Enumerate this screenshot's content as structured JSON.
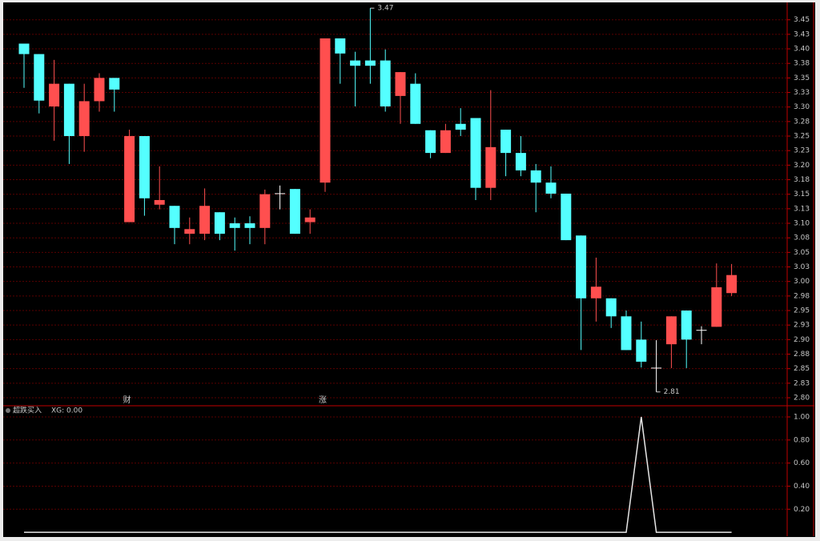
{
  "chart_data": [
    {
      "type": "candlestick",
      "open": [
        3.409,
        3.391,
        3.301,
        3.34,
        3.25,
        3.31,
        3.35,
        3.102,
        3.25,
        3.132,
        3.13,
        3.082,
        3.082,
        3.119,
        3.1,
        3.1,
        3.092,
        3.151,
        3.159,
        3.102,
        3.17,
        3.418,
        3.38,
        3.38,
        3.38,
        3.319,
        3.34,
        3.26,
        3.221,
        3.271,
        3.281,
        3.161,
        3.261,
        3.221,
        3.191,
        3.17,
        3.151,
        3.079,
        2.971,
        2.971,
        2.94,
        2.9,
        2.851,
        2.892,
        2.95,
        2.916,
        2.922,
        2.98
      ],
      "high": [
        3.409,
        3.391,
        3.381,
        3.34,
        3.34,
        3.358,
        3.35,
        3.261,
        3.25,
        3.198,
        3.13,
        3.11,
        3.16,
        3.119,
        3.11,
        3.112,
        3.158,
        3.165,
        3.159,
        3.124,
        3.418,
        3.418,
        3.395,
        3.47,
        3.399,
        3.36,
        3.358,
        3.26,
        3.271,
        3.298,
        3.281,
        3.329,
        3.261,
        3.25,
        3.202,
        3.198,
        3.151,
        3.079,
        3.041,
        2.971,
        2.95,
        2.931,
        2.899,
        2.94,
        2.95,
        2.923,
        3.031,
        3.03
      ],
      "low": [
        3.333,
        3.289,
        3.242,
        3.202,
        3.223,
        3.292,
        3.292,
        3.102,
        3.113,
        3.124,
        3.064,
        3.064,
        3.071,
        3.071,
        3.053,
        3.064,
        3.064,
        3.124,
        3.082,
        3.082,
        3.154,
        3.34,
        3.301,
        3.34,
        3.292,
        3.271,
        3.271,
        3.212,
        3.221,
        3.25,
        3.14,
        3.14,
        3.181,
        3.181,
        3.119,
        3.143,
        3.071,
        2.882,
        2.931,
        2.92,
        2.882,
        2.852,
        2.81,
        2.851,
        2.851,
        2.892,
        2.922,
        2.975
      ],
      "close": [
        3.391,
        3.311,
        3.34,
        3.25,
        3.31,
        3.35,
        3.33,
        3.25,
        3.143,
        3.14,
        3.092,
        3.09,
        3.13,
        3.082,
        3.092,
        3.092,
        3.15,
        3.151,
        3.082,
        3.11,
        3.418,
        3.392,
        3.371,
        3.371,
        3.301,
        3.36,
        3.271,
        3.221,
        3.26,
        3.261,
        3.161,
        3.231,
        3.221,
        3.191,
        3.17,
        3.151,
        3.071,
        2.971,
        2.991,
        2.94,
        2.882,
        2.862,
        2.851,
        2.94,
        2.9,
        2.916,
        2.99,
        3.011
      ],
      "events": [
        null,
        null,
        null,
        null,
        null,
        null,
        null,
        "财",
        null,
        null,
        null,
        null,
        null,
        null,
        null,
        null,
        null,
        null,
        null,
        null,
        "涨",
        null,
        null,
        null,
        null,
        null,
        null,
        null,
        null,
        null,
        null,
        null,
        null,
        null,
        null,
        null,
        null,
        null,
        null,
        null,
        null,
        null,
        null,
        null,
        null,
        null,
        null,
        null
      ],
      "up_color": "#ff4f4f",
      "down_color": "#54ffff",
      "flat_color": "#ffffff",
      "ylim": [
        2.789,
        3.473
      ],
      "yticks": [
        {
          "value": 2.8,
          "label": "2.80"
        },
        {
          "value": 2.825,
          "label": "2.83"
        },
        {
          "value": 2.85,
          "label": "2.85"
        },
        {
          "value": 2.875,
          "label": "2.88"
        },
        {
          "value": 2.9,
          "label": "2.90"
        },
        {
          "value": 2.925,
          "label": "2.93"
        },
        {
          "value": 2.95,
          "label": "2.95"
        },
        {
          "value": 2.975,
          "label": "2.98"
        },
        {
          "value": 3.0,
          "label": "3.00"
        },
        {
          "value": 3.025,
          "label": "3.03"
        },
        {
          "value": 3.05,
          "label": "3.05"
        },
        {
          "value": 3.075,
          "label": "3.08"
        },
        {
          "value": 3.1,
          "label": "3.10"
        },
        {
          "value": 3.125,
          "label": "3.13"
        },
        {
          "value": 3.15,
          "label": "3.15"
        },
        {
          "value": 3.175,
          "label": "3.18"
        },
        {
          "value": 3.2,
          "label": "3.20"
        },
        {
          "value": 3.225,
          "label": "3.23"
        },
        {
          "value": 3.25,
          "label": "3.25"
        },
        {
          "value": 3.275,
          "label": "3.28"
        },
        {
          "value": 3.3,
          "label": "3.30"
        },
        {
          "value": 3.325,
          "label": "3.33"
        },
        {
          "value": 3.35,
          "label": "3.35"
        },
        {
          "value": 3.375,
          "label": "3.38"
        },
        {
          "value": 3.4,
          "label": "3.40"
        },
        {
          "value": 3.425,
          "label": "3.43"
        },
        {
          "value": 3.45,
          "label": "3.45"
        }
      ],
      "grid": true
    },
    {
      "type": "line",
      "title": "超跌买入",
      "legend_text": "XG: 0.00",
      "series": [
        {
          "name": "XG",
          "color": "#e6e6e6",
          "values": [
            0,
            0,
            0,
            0,
            0,
            0,
            0,
            0,
            0,
            0,
            0,
            0,
            0,
            0,
            0,
            0,
            0,
            0,
            0,
            0,
            0,
            0,
            0,
            0,
            0,
            0,
            0,
            0,
            0,
            0,
            0,
            0,
            0,
            0,
            0,
            0,
            0,
            0,
            0,
            0,
            0,
            1,
            0,
            0,
            0,
            0,
            0,
            0
          ]
        }
      ],
      "ylim": [
        -0.02,
        1.09
      ],
      "yticks": [
        {
          "value": 0.2,
          "label": "0.20"
        },
        {
          "value": 0.4,
          "label": "0.40"
        },
        {
          "value": 0.6,
          "label": "0.60"
        },
        {
          "value": 0.8,
          "label": "0.80"
        },
        {
          "value": 1.0,
          "label": "1.00"
        }
      ],
      "grid": true
    }
  ]
}
